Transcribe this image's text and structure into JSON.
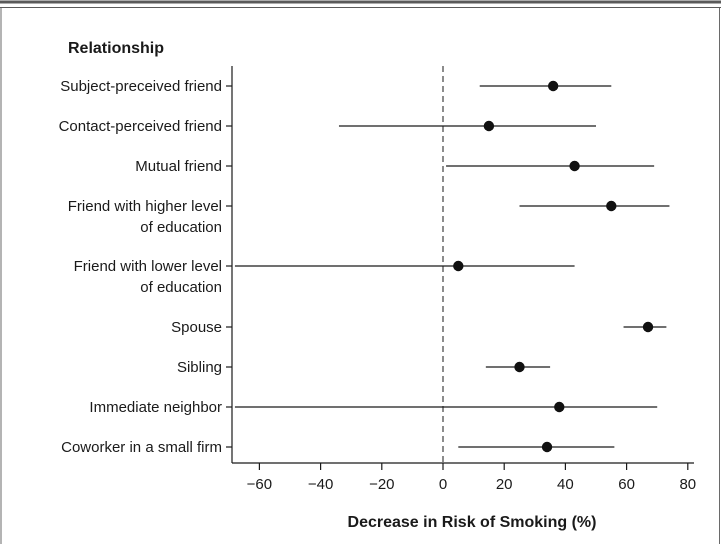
{
  "chart_data": {
    "type": "forest",
    "header": "Relationship",
    "xlabel": "Decrease in Risk of Smoking (%)",
    "xlim": [
      -70,
      82
    ],
    "xticks": [
      -60,
      -40,
      -20,
      0,
      20,
      40,
      60,
      80
    ],
    "xtick_labels": [
      "−60",
      "−40",
      "−20",
      "0",
      "20",
      "40",
      "60",
      "80"
    ],
    "reference_line": 0,
    "rows": [
      {
        "label": [
          "Subject-preceived friend"
        ],
        "estimate": 36,
        "lower": 12,
        "upper": 55
      },
      {
        "label": [
          "Contact-perceived friend"
        ],
        "estimate": 15,
        "lower": -34,
        "upper": 50
      },
      {
        "label": [
          "Mutual friend"
        ],
        "estimate": 43,
        "lower": 1,
        "upper": 69
      },
      {
        "label": [
          "Friend with higher level",
          "of education"
        ],
        "estimate": 55,
        "lower": 25,
        "upper": 74
      },
      {
        "label": [
          "Friend with lower level",
          "of education"
        ],
        "estimate": 5,
        "lower": -68,
        "upper": 43
      },
      {
        "label": [
          "Spouse"
        ],
        "estimate": 67,
        "lower": 59,
        "upper": 73
      },
      {
        "label": [
          "Sibling"
        ],
        "estimate": 25,
        "lower": 14,
        "upper": 35
      },
      {
        "label": [
          "Immediate neighbor"
        ],
        "estimate": 38,
        "lower": -68,
        "upper": 70
      },
      {
        "label": [
          "Coworker in a small firm"
        ],
        "estimate": 34,
        "lower": 5,
        "upper": 56
      }
    ]
  }
}
